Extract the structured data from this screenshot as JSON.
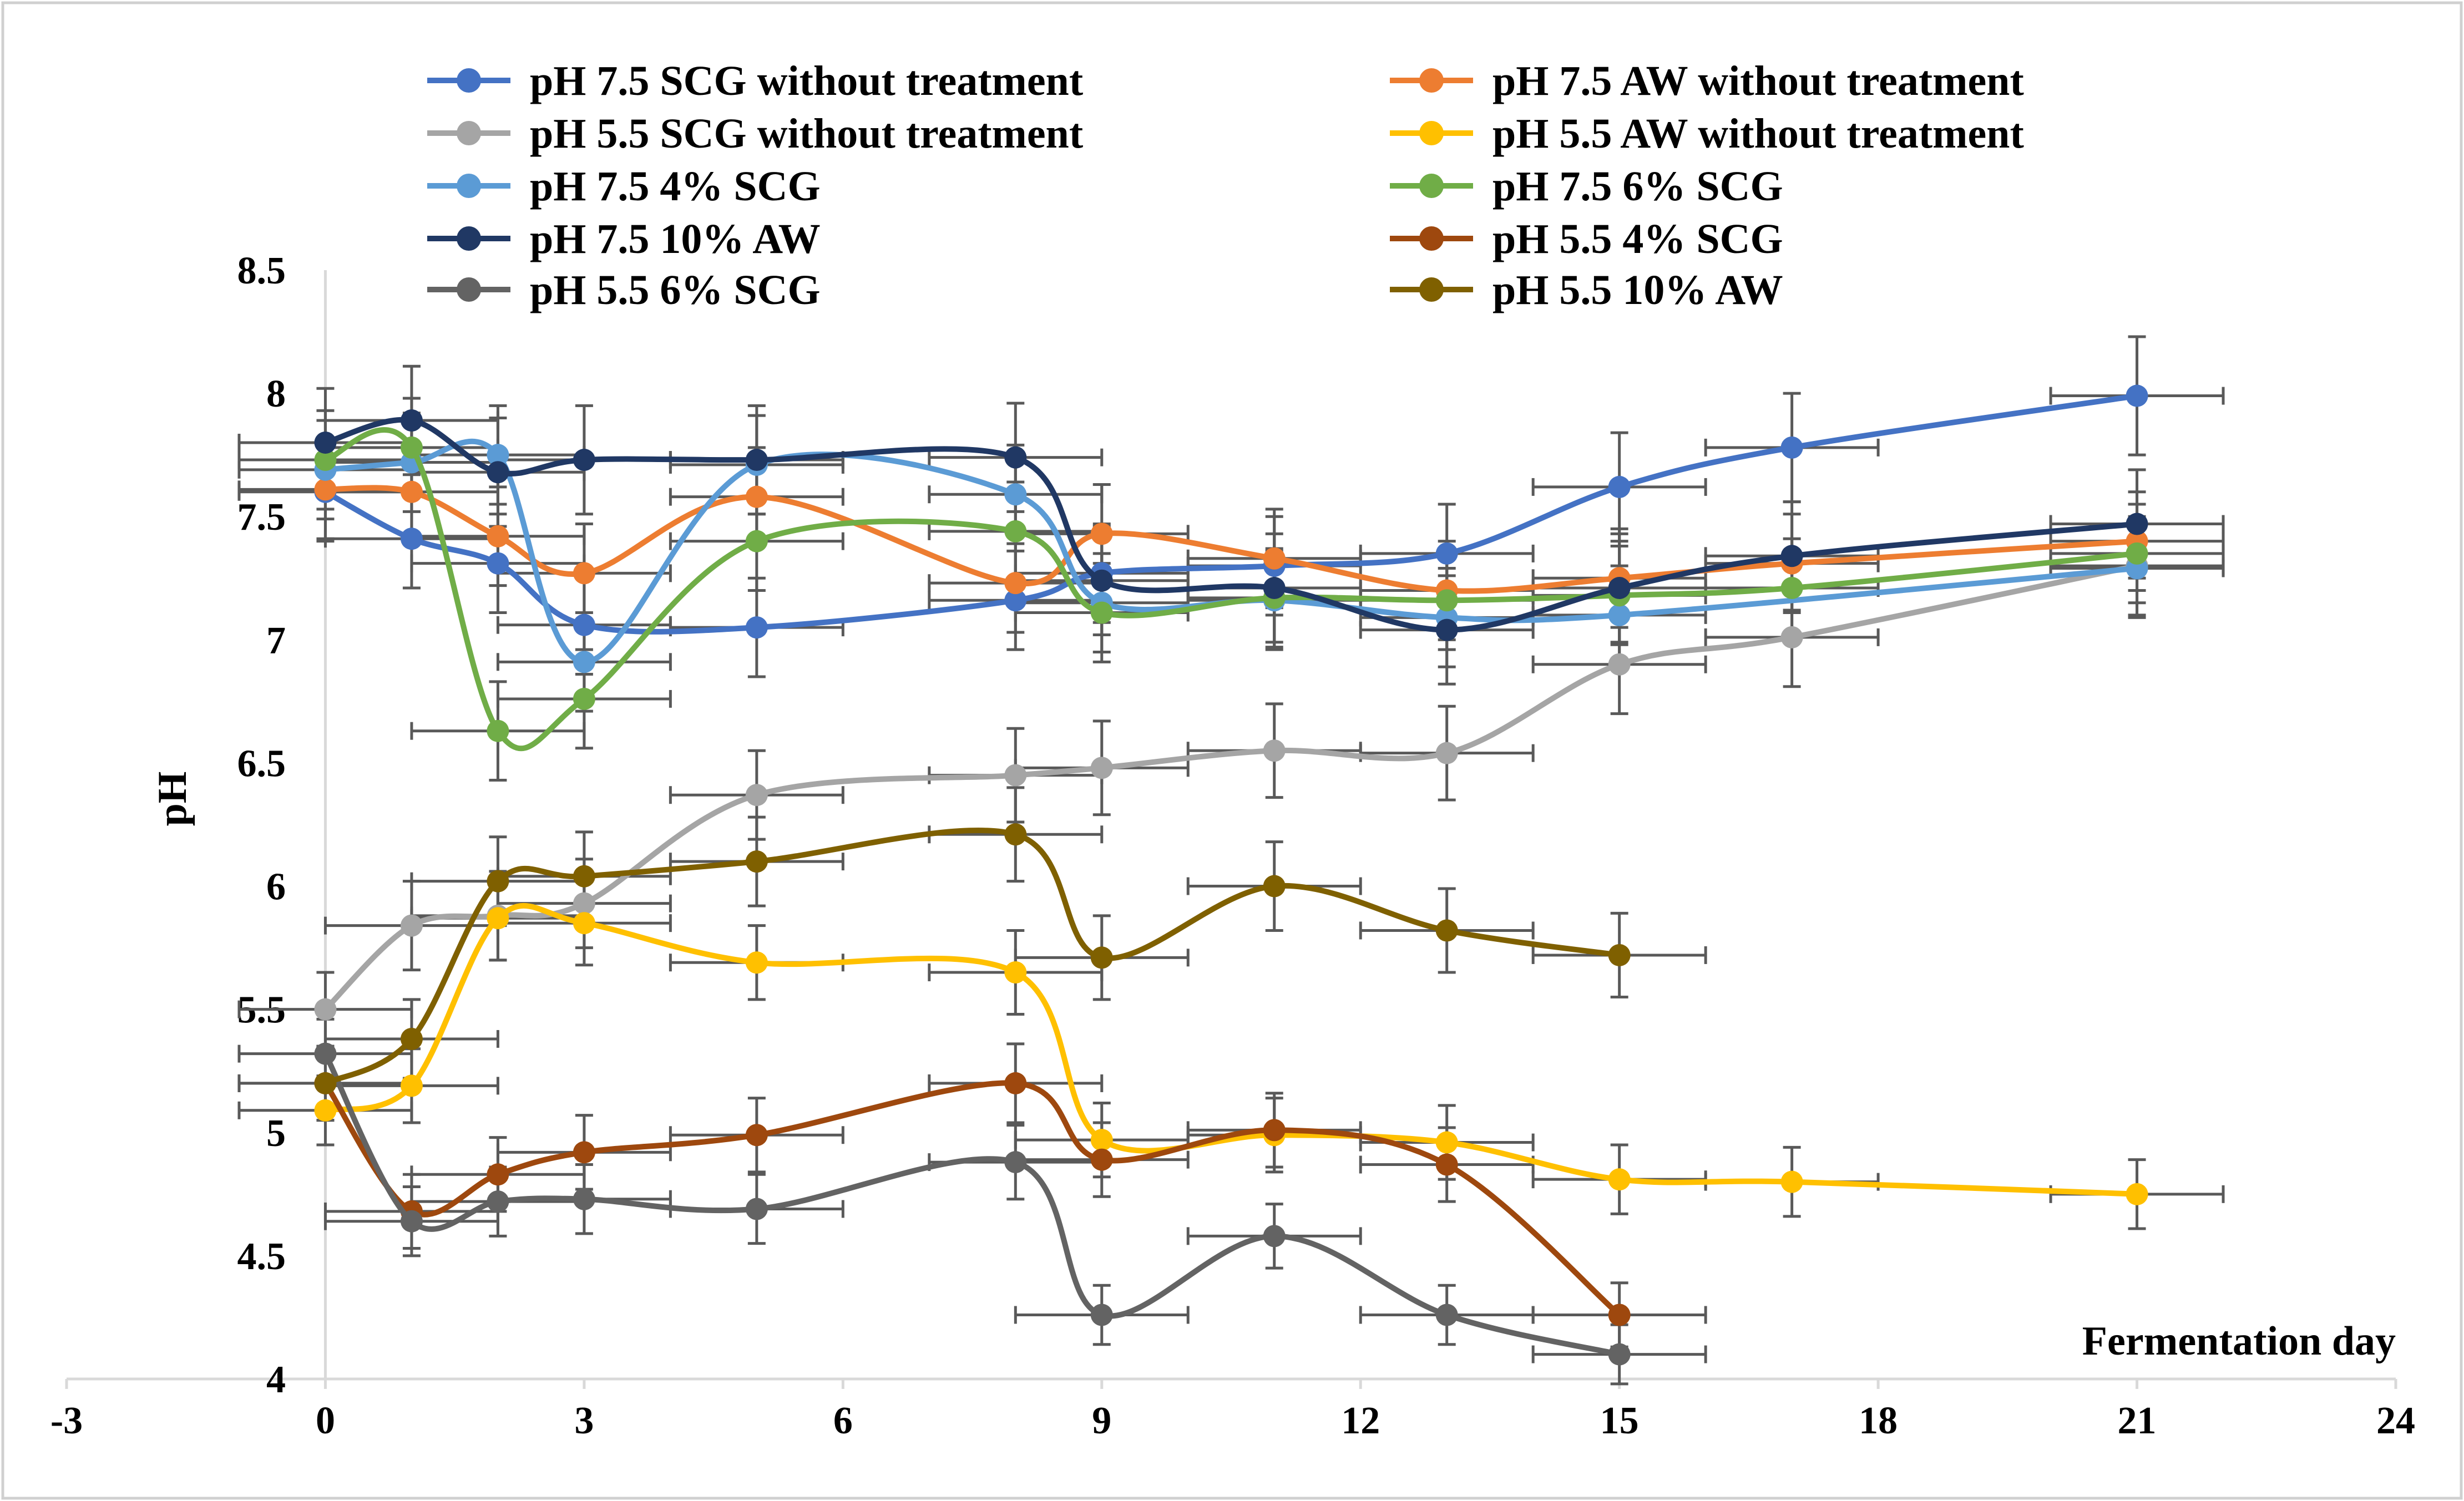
{
  "chart_data": {
    "type": "line",
    "title": "",
    "xlabel": "Fermentation day",
    "ylabel": "pH",
    "xlim": [
      -3,
      24
    ],
    "ylim": [
      4,
      8.5
    ],
    "x_ticks": [
      "-3",
      "0",
      "3",
      "6",
      "9",
      "12",
      "15",
      "18",
      "21",
      "24"
    ],
    "y_ticks": [
      "4",
      "4.5",
      "5",
      "5.5",
      "6",
      "6.5",
      "7",
      "7.5",
      "8",
      "8.5"
    ],
    "legend_position": "top",
    "series": [
      {
        "name": "pH 7.5 SCG without treatment",
        "color": "#4472C4",
        "x": [
          0,
          1,
          2,
          3,
          5,
          8,
          9,
          11,
          13,
          15,
          17,
          21
        ],
        "y": [
          7.6,
          7.41,
          7.31,
          7.06,
          7.05,
          7.16,
          7.27,
          7.3,
          7.35,
          7.62,
          7.78,
          7.99
        ],
        "yerr": [
          0.2,
          0.2,
          0.2,
          0.2,
          0.2,
          0.2,
          0.2,
          0.2,
          0.2,
          0.22,
          0.22,
          0.24
        ],
        "xerr": 1
      },
      {
        "name": "pH 7.5 AW without treatment",
        "color": "#ED7D31",
        "x": [
          0,
          1,
          2,
          3,
          5,
          8,
          9,
          11,
          13,
          15,
          17,
          21
        ],
        "y": [
          7.61,
          7.6,
          7.42,
          7.27,
          7.58,
          7.23,
          7.43,
          7.33,
          7.2,
          7.25,
          7.31,
          7.4
        ],
        "yerr": [
          0.2,
          0.2,
          0.2,
          0.2,
          0.2,
          0.2,
          0.2,
          0.2,
          0.2,
          0.2,
          0.2,
          0.2
        ],
        "xerr": 1
      },
      {
        "name": "pH 5.5 SCG without treatment",
        "color": "#A5A5A5",
        "x": [
          0,
          1,
          2,
          3,
          5,
          8,
          9,
          11,
          13,
          15,
          17,
          21
        ],
        "y": [
          5.5,
          5.84,
          5.88,
          5.93,
          6.37,
          6.45,
          6.48,
          6.55,
          6.54,
          6.9,
          7.01,
          7.3
        ],
        "yerr": [
          0.15,
          0.18,
          0.18,
          0.18,
          0.18,
          0.19,
          0.19,
          0.19,
          0.19,
          0.2,
          0.2,
          0.2
        ],
        "xerr": 1
      },
      {
        "name": "pH 5.5 AW without treatment",
        "color": "#FFC000",
        "x": [
          0,
          1,
          2,
          3,
          5,
          8,
          9,
          11,
          13,
          15,
          17,
          21
        ],
        "y": [
          5.09,
          5.19,
          5.87,
          5.85,
          5.69,
          5.65,
          4.97,
          4.99,
          4.96,
          4.81,
          4.8,
          4.75
        ],
        "yerr": [
          0.14,
          0.15,
          0.17,
          0.17,
          0.15,
          0.17,
          0.15,
          0.15,
          0.15,
          0.14,
          0.14,
          0.14
        ],
        "xerr": 1
      },
      {
        "name": "pH 7.5 4% SCG",
        "color": "#5B9BD5",
        "x": [
          0,
          1,
          2,
          3,
          5,
          8,
          9,
          11,
          13,
          15,
          21
        ],
        "y": [
          7.69,
          7.72,
          7.75,
          6.91,
          7.71,
          7.59,
          7.15,
          7.16,
          7.09,
          7.1,
          7.29
        ],
        "yerr": [
          0.2,
          0.2,
          0.2,
          0.2,
          0.2,
          0.2,
          0.2,
          0.2,
          0.2,
          0.2,
          0.2
        ],
        "xerr": 1
      },
      {
        "name": "pH 7.5 6% SCG",
        "color": "#70AD47",
        "x": [
          0,
          1,
          2,
          3,
          5,
          8,
          9,
          11,
          13,
          15,
          17,
          21
        ],
        "y": [
          7.73,
          7.78,
          6.63,
          6.76,
          7.4,
          7.44,
          7.11,
          7.17,
          7.16,
          7.18,
          7.21,
          7.35
        ],
        "yerr": [
          0.2,
          0.2,
          0.2,
          0.2,
          0.2,
          0.2,
          0.2,
          0.2,
          0.2,
          0.2,
          0.2,
          0.2
        ],
        "xerr": 1
      },
      {
        "name": "pH 7.5 10% AW",
        "color": "#203864",
        "x": [
          0,
          1,
          2,
          3,
          5,
          8,
          9,
          11,
          13,
          15,
          17,
          21
        ],
        "y": [
          7.8,
          7.89,
          7.68,
          7.73,
          7.73,
          7.74,
          7.24,
          7.21,
          7.04,
          7.21,
          7.34,
          7.47
        ],
        "yerr": [
          0.22,
          0.22,
          0.22,
          0.22,
          0.22,
          0.22,
          0.22,
          0.22,
          0.22,
          0.22,
          0.22,
          0.22
        ],
        "xerr": 1
      },
      {
        "name": "pH 5.5 4% SCG",
        "color": "#9E480E",
        "x": [
          0,
          1,
          2,
          3,
          5,
          8,
          9,
          11,
          13,
          15
        ],
        "y": [
          5.2,
          4.68,
          4.83,
          4.92,
          4.99,
          5.2,
          4.89,
          5.01,
          4.87,
          4.26
        ],
        "yerr": [
          0.15,
          0.15,
          0.15,
          0.15,
          0.15,
          0.16,
          0.15,
          0.15,
          0.15,
          0.13
        ],
        "xerr": 1
      },
      {
        "name": "pH 5.5 6% SCG",
        "color": "#636363",
        "x": [
          0,
          1,
          2,
          3,
          5,
          8,
          9,
          11,
          13,
          15
        ],
        "y": [
          5.32,
          4.64,
          4.72,
          4.73,
          4.69,
          4.88,
          4.26,
          4.58,
          4.26,
          4.1
        ],
        "yerr": [
          0.14,
          0.14,
          0.14,
          0.14,
          0.14,
          0.15,
          0.12,
          0.13,
          0.12,
          0.12
        ],
        "xerr": 1
      },
      {
        "name": "pH 5.5 10% AW",
        "color": "#7F6000",
        "x": [
          0,
          1,
          2,
          3,
          5,
          8,
          9,
          11,
          13,
          15
        ],
        "y": [
          5.2,
          5.38,
          6.02,
          6.04,
          6.1,
          6.21,
          5.71,
          6.0,
          5.82,
          5.72
        ],
        "yerr": [
          0.15,
          0.16,
          0.18,
          0.18,
          0.18,
          0.19,
          0.17,
          0.18,
          0.17,
          0.17
        ],
        "xerr": 1
      }
    ]
  }
}
